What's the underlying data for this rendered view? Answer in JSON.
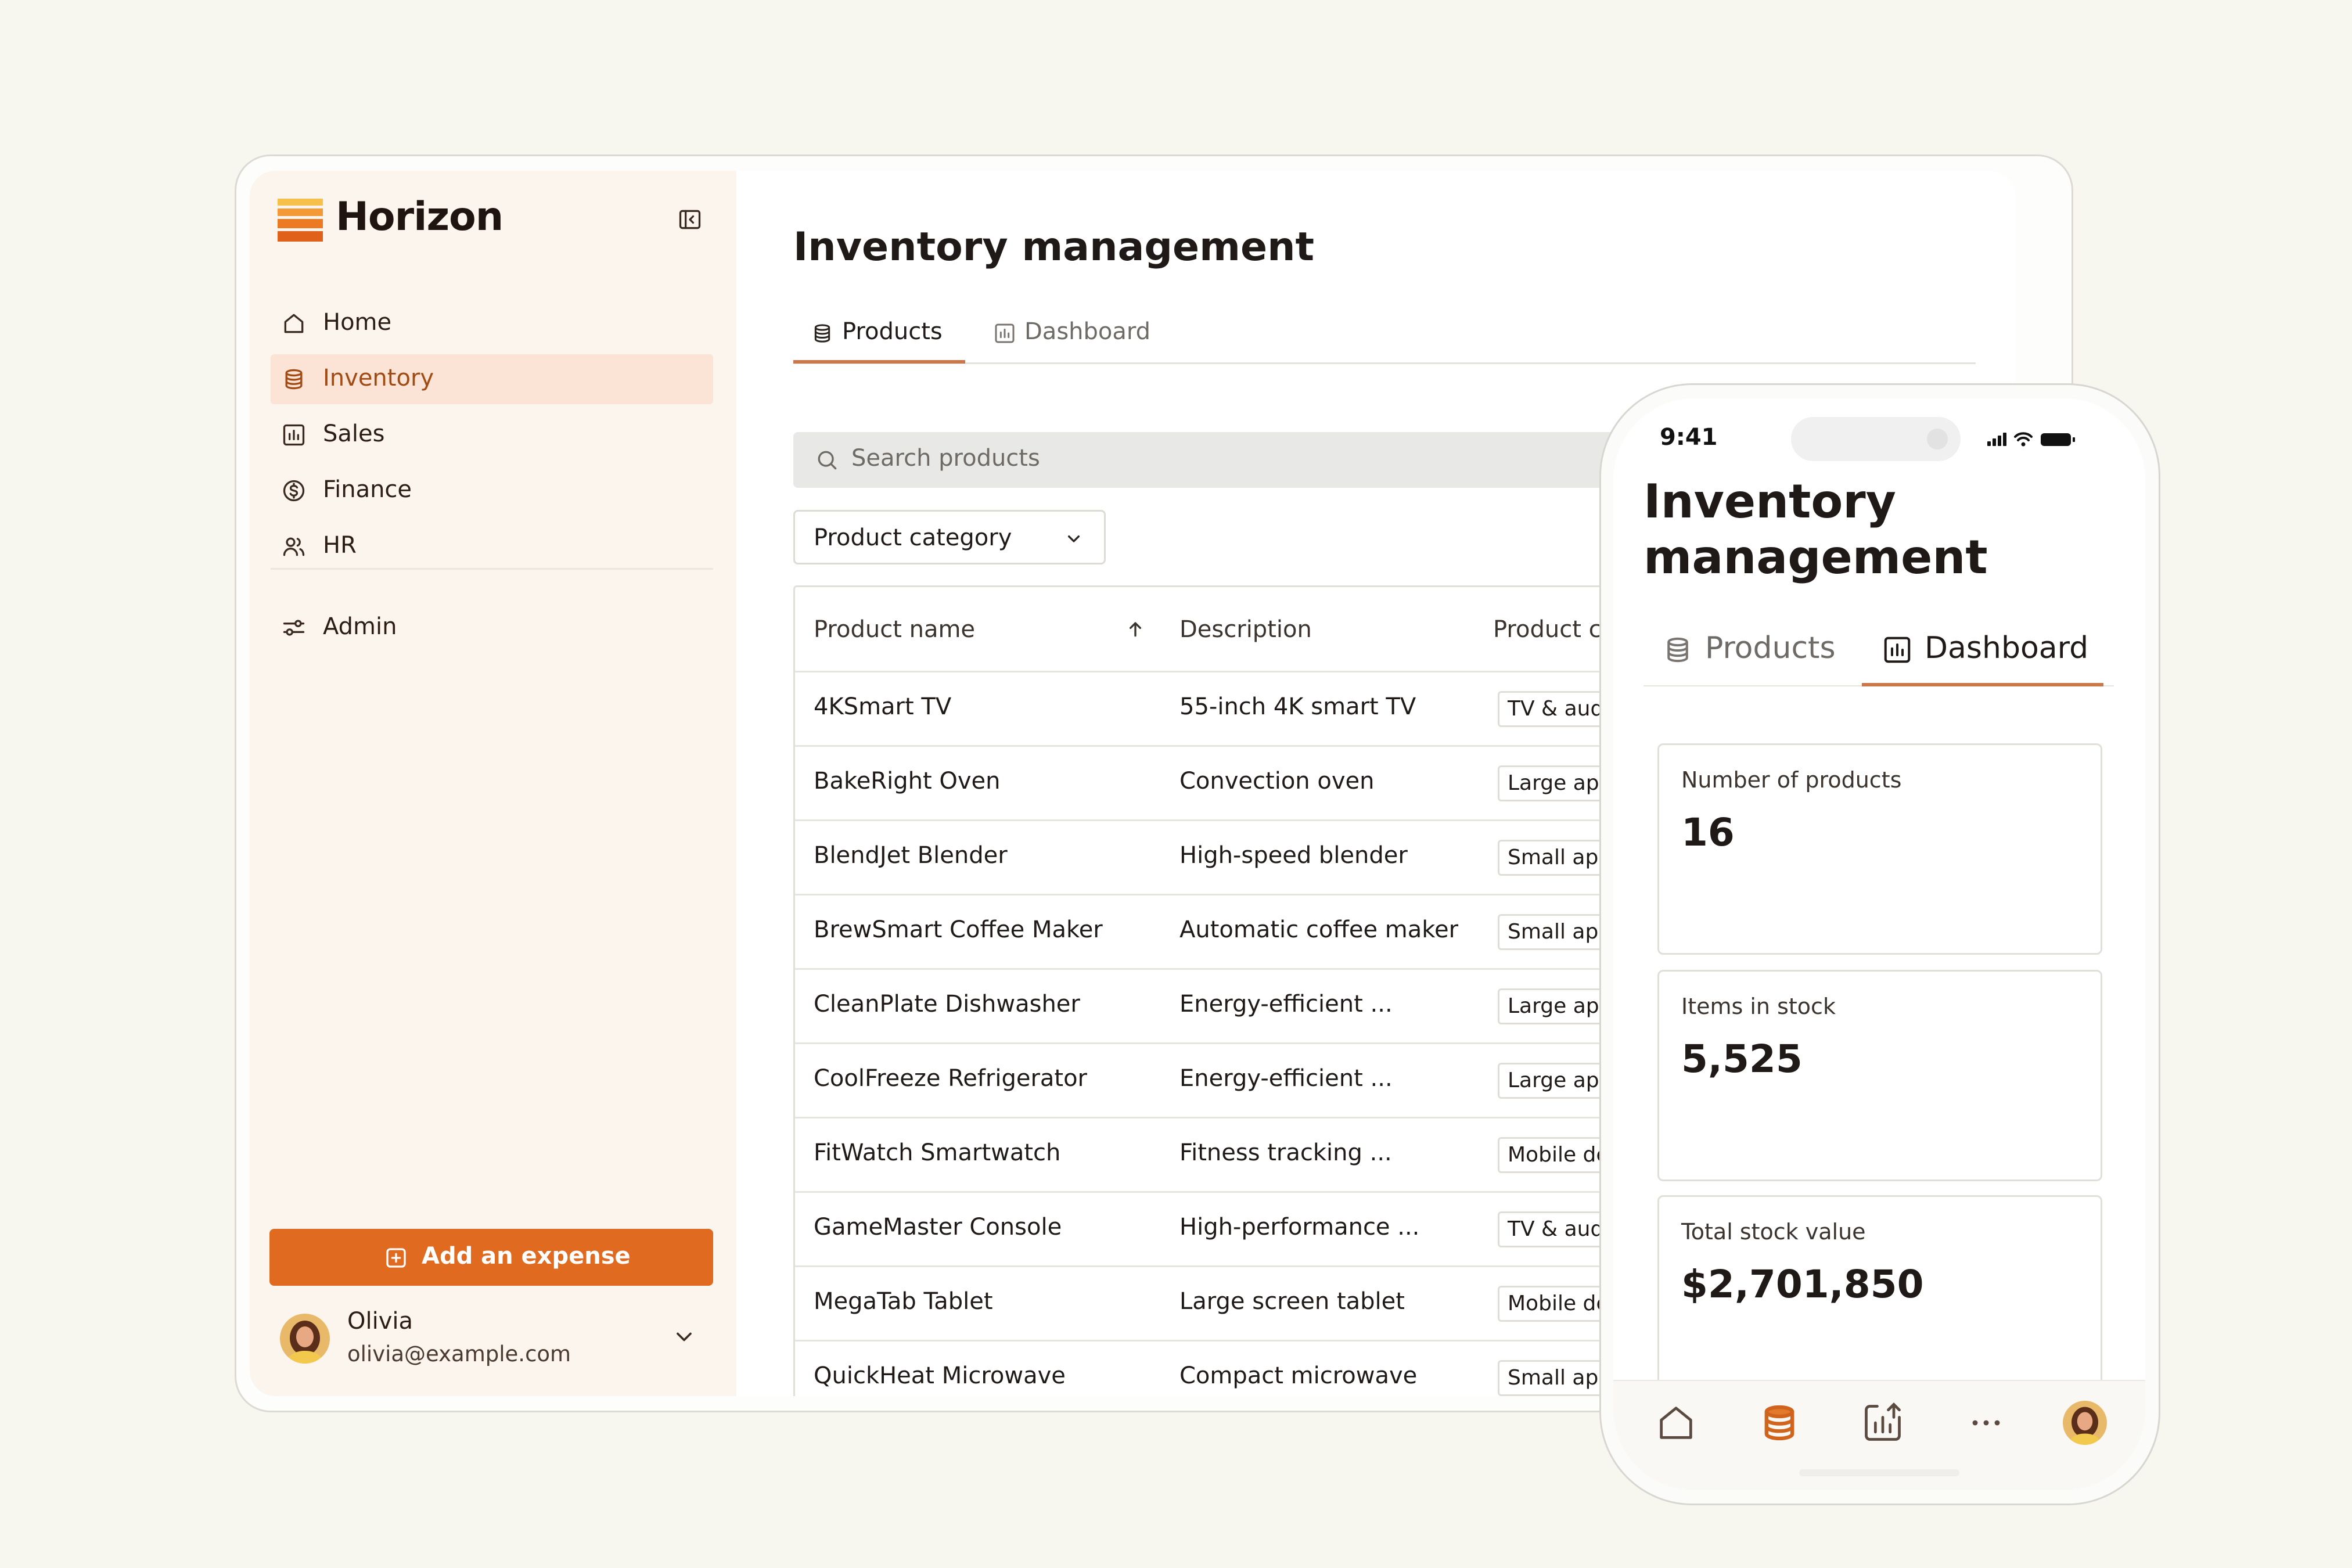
{
  "app": {
    "brand": "Horizon",
    "accent_color": "#e06a1f",
    "active_nav_bg": "#fbe4d5"
  },
  "sidebar": {
    "items": [
      {
        "label": "Home",
        "icon": "home-icon"
      },
      {
        "label": "Inventory",
        "icon": "database-icon",
        "active": true
      },
      {
        "label": "Sales",
        "icon": "chart-icon"
      },
      {
        "label": "Finance",
        "icon": "dollar-icon"
      },
      {
        "label": "HR",
        "icon": "users-icon"
      }
    ],
    "admin": {
      "label": "Admin",
      "icon": "sliders-icon"
    },
    "add_expense_label": "Add an expense",
    "user": {
      "name": "Olivia",
      "email": "olivia@example.com"
    }
  },
  "main": {
    "title": "Inventory management",
    "tabs": [
      {
        "label": "Products",
        "icon": "database-icon",
        "active": true
      },
      {
        "label": "Dashboard",
        "icon": "chart-icon"
      }
    ],
    "search_placeholder": "Search products",
    "category_filter": "Product category",
    "table": {
      "columns": [
        "Product name",
        "Description",
        "Product c"
      ],
      "rows": [
        {
          "name": "4KSmart TV",
          "description": "55-inch 4K smart TV",
          "category": "TV & audio"
        },
        {
          "name": "BakeRight Oven",
          "description": "Convection oven",
          "category": "Large appl"
        },
        {
          "name": "BlendJet Blender",
          "description": "High-speed blender",
          "category": "Small appl"
        },
        {
          "name": "BrewSmart Coffee Maker",
          "description": "Automatic coffee maker",
          "category": "Small appl"
        },
        {
          "name": "CleanPlate Dishwasher",
          "description": "Energy-efficient ...",
          "category": "Large appl"
        },
        {
          "name": "CoolFreeze Refrigerator",
          "description": "Energy-efficient ...",
          "category": "Large appl"
        },
        {
          "name": "FitWatch Smartwatch",
          "description": "Fitness tracking ...",
          "category": "Mobile dev"
        },
        {
          "name": "GameMaster Console",
          "description": "High-performance ...",
          "category": "TV & audio"
        },
        {
          "name": "MegaTab Tablet",
          "description": "Large screen tablet",
          "category": "Mobile dev"
        },
        {
          "name": "QuickHeat Microwave",
          "description": "Compact microwave",
          "category": "Small appl"
        }
      ]
    }
  },
  "phone": {
    "time": "9:41",
    "title_line1": "Inventory",
    "title_line2": "management",
    "tabs": [
      {
        "label": "Products",
        "icon": "database-icon"
      },
      {
        "label": "Dashboard",
        "icon": "chart-icon",
        "active": true
      }
    ],
    "stats": [
      {
        "label": "Number of products",
        "value": "16"
      },
      {
        "label": "Items in stock",
        "value": "5,525"
      },
      {
        "label": "Total stock value",
        "value": "$2,701,850"
      }
    ],
    "bottom_nav": [
      "home-icon",
      "database-icon",
      "chart-icon",
      "more-icon",
      "avatar"
    ]
  }
}
